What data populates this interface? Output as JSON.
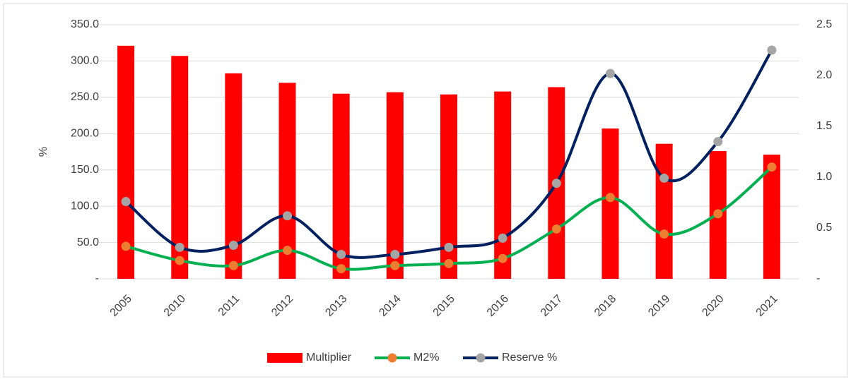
{
  "chart_data": {
    "type": "bar-line",
    "y_axis_label": "%",
    "categories": [
      "2005",
      "2010",
      "2011",
      "2012",
      "2013",
      "2014",
      "2015",
      "2016",
      "2017",
      "2018",
      "2019",
      "2020",
      "2021"
    ],
    "series": [
      {
        "name": "Multiplier",
        "type": "bar",
        "color": "#ff0000",
        "values": [
          321,
          307,
          283,
          270,
          255,
          257,
          254,
          258,
          264,
          207,
          186,
          176,
          171
        ]
      },
      {
        "name": "M2%",
        "type": "line",
        "axis": "y2",
        "color": "#00b050",
        "marker_color": "#ed7d31",
        "values": [
          0.32,
          0.18,
          0.13,
          0.28,
          0.1,
          0.13,
          0.15,
          0.2,
          0.49,
          0.8,
          0.44,
          0.64,
          1.1
        ]
      },
      {
        "name": "Reserve %",
        "type": "line",
        "axis": "y2",
        "color": "#002060",
        "marker_color": "#a5a5a5",
        "values": [
          0.76,
          0.31,
          0.33,
          0.62,
          0.24,
          0.24,
          0.31,
          0.4,
          0.94,
          2.02,
          0.99,
          1.35,
          2.25
        ]
      }
    ],
    "ylim": [
      0,
      350
    ],
    "yticks": [
      {
        "value": 0,
        "label": "-"
      },
      {
        "value": 50,
        "label": "50.0"
      },
      {
        "value": 100,
        "label": "100.0"
      },
      {
        "value": 150,
        "label": "150.0"
      },
      {
        "value": 200,
        "label": "200.0"
      },
      {
        "value": 250,
        "label": "250.0"
      },
      {
        "value": 300,
        "label": "300.0"
      },
      {
        "value": 350,
        "label": "350.0"
      }
    ],
    "y2lim": [
      0,
      2.5
    ],
    "y2ticks": [
      {
        "value": 0,
        "label": "-"
      },
      0.5,
      {
        "value": 1,
        "label": "1.0"
      },
      1.5,
      {
        "value": 2,
        "label": "2.0"
      },
      2.5
    ],
    "grid": true,
    "legend": "bottom"
  }
}
